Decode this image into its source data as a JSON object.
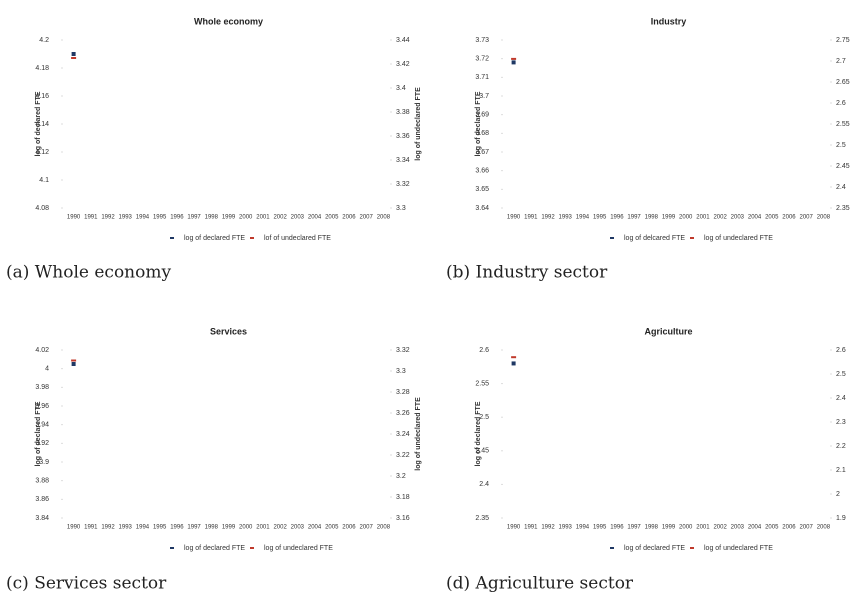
{
  "chart_data": [
    {
      "type": "line",
      "title": "Whole economy",
      "ylabel": "log of declared FTE",
      "y2label": "log of undeclared FTE",
      "categories": [
        "1990",
        "1991",
        "1992",
        "1993",
        "1994",
        "1995",
        "1996",
        "1997",
        "1998",
        "1999",
        "2000",
        "2001",
        "2002",
        "2003",
        "2004",
        "2005",
        "2006",
        "2007",
        "2008"
      ],
      "ylim": [
        4.08,
        4.2
      ],
      "yticks": [
        4.08,
        4.1,
        4.12,
        4.14,
        4.16,
        4.18,
        4.2
      ],
      "y2lim": [
        3.3,
        3.44
      ],
      "y2ticks": [
        3.3,
        3.32,
        3.34,
        3.36,
        3.38,
        3.4,
        3.42,
        3.44
      ],
      "series": [
        {
          "name": "log of declared FTE",
          "color": "#1f3864",
          "values": [
            4.19,
            null,
            null,
            null,
            null,
            null,
            null,
            null,
            null,
            null,
            null,
            null,
            null,
            null,
            null,
            null,
            null,
            null,
            null
          ]
        },
        {
          "name": "lof of undeclared FTE",
          "color": "#c0392b",
          "axis": "y2",
          "values": [
            3.425,
            null,
            null,
            null,
            null,
            null,
            null,
            null,
            null,
            null,
            null,
            null,
            null,
            null,
            null,
            null,
            null,
            null,
            null
          ]
        }
      ]
    },
    {
      "type": "line",
      "title": "Industry",
      "ylabel": "log of declared FTE",
      "y2label": "log of undeclared FTE",
      "categories": [
        "1990",
        "1991",
        "1992",
        "1993",
        "1994",
        "1995",
        "1996",
        "1997",
        "1998",
        "1999",
        "2000",
        "2001",
        "2002",
        "2003",
        "2004",
        "2005",
        "2006",
        "2007",
        "2008"
      ],
      "ylim": [
        3.64,
        3.73
      ],
      "yticks": [
        3.64,
        3.65,
        3.66,
        3.67,
        3.68,
        3.69,
        3.7,
        3.71,
        3.72,
        3.73
      ],
      "y2lim": [
        2.35,
        2.75
      ],
      "y2ticks": [
        2.35,
        2.4,
        2.45,
        2.5,
        2.55,
        2.6,
        2.65,
        2.7,
        2.75
      ],
      "series": [
        {
          "name": "log of delcared FTE",
          "color": "#1f3864",
          "values": [
            3.718,
            null,
            null,
            null,
            null,
            null,
            null,
            null,
            null,
            null,
            null,
            null,
            null,
            null,
            null,
            null,
            null,
            null,
            null
          ]
        },
        {
          "name": "log of undeclared FTE",
          "color": "#c0392b",
          "axis": "y2",
          "values": [
            2.705,
            null,
            null,
            null,
            null,
            null,
            null,
            null,
            null,
            null,
            null,
            null,
            null,
            null,
            null,
            null,
            null,
            null,
            null
          ]
        }
      ]
    },
    {
      "type": "line",
      "title": "Services",
      "ylabel": "log of declared FTE",
      "y2label": "log of undeclared FTE",
      "categories": [
        "1990",
        "1991",
        "1992",
        "1993",
        "1994",
        "1995",
        "1996",
        "1997",
        "1998",
        "1999",
        "2000",
        "2001",
        "2002",
        "2003",
        "2004",
        "2005",
        "2006",
        "2007",
        "2008"
      ],
      "ylim": [
        3.84,
        4.02
      ],
      "yticks": [
        3.84,
        3.86,
        3.88,
        3.9,
        3.92,
        3.94,
        3.96,
        3.98,
        4,
        4.02
      ],
      "y2lim": [
        3.16,
        3.32
      ],
      "y2ticks": [
        3.16,
        3.18,
        3.2,
        3.22,
        3.24,
        3.26,
        3.28,
        3.3,
        3.32
      ],
      "series": [
        {
          "name": "log of declared FTE",
          "color": "#1f3864",
          "values": [
            4.005,
            null,
            null,
            null,
            null,
            null,
            null,
            null,
            null,
            null,
            null,
            null,
            null,
            null,
            null,
            null,
            null,
            null,
            null
          ]
        },
        {
          "name": "log of undeclared FTE",
          "color": "#c0392b",
          "axis": "y2",
          "values": [
            3.31,
            null,
            null,
            null,
            null,
            null,
            null,
            null,
            null,
            null,
            null,
            null,
            null,
            null,
            null,
            null,
            null,
            null,
            null
          ]
        }
      ]
    },
    {
      "type": "line",
      "title": "Agriculture",
      "ylabel": "log of declared FTE",
      "y2label": "log of undeclared FTE",
      "categories": [
        "1990",
        "1991",
        "1992",
        "1993",
        "1994",
        "1995",
        "1996",
        "1997",
        "1998",
        "1999",
        "2000",
        "2001",
        "2002",
        "2003",
        "2004",
        "2005",
        "2006",
        "2007",
        "2008"
      ],
      "ylim": [
        2.35,
        2.6
      ],
      "yticks": [
        2.35,
        2.4,
        2.45,
        2.5,
        2.55,
        2.6
      ],
      "y2lim": [
        1.9,
        2.6
      ],
      "y2ticks": [
        1.9,
        2,
        2.1,
        2.2,
        2.3,
        2.4,
        2.5,
        2.6
      ],
      "series": [
        {
          "name": "log of declared FTE",
          "color": "#1f3864",
          "values": [
            2.58,
            null,
            null,
            null,
            null,
            null,
            null,
            null,
            null,
            null,
            null,
            null,
            null,
            null,
            null,
            null,
            null,
            null,
            null
          ]
        },
        {
          "name": "log of undeclared FTE",
          "color": "#c0392b",
          "axis": "y2",
          "values": [
            2.57,
            null,
            null,
            null,
            null,
            null,
            null,
            null,
            null,
            null,
            null,
            null,
            null,
            null,
            null,
            null,
            null,
            null,
            null
          ]
        }
      ]
    }
  ],
  "captions": [
    "(a) Whole economy",
    "(b) Industry sector",
    "(c) Services sector",
    "(d) Agriculture sector"
  ]
}
